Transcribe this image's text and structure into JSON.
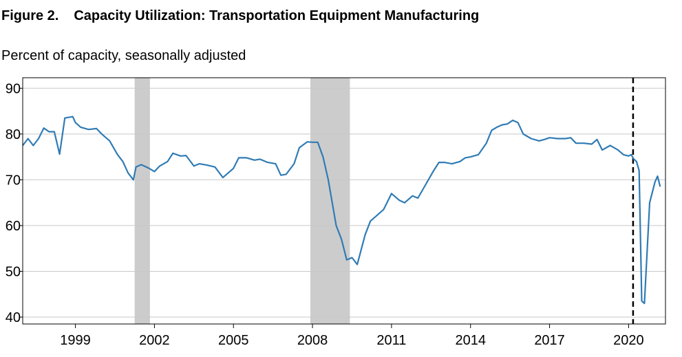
{
  "figure_label": "Figure 2.",
  "title": "Capacity Utilization: Transportation Equipment Manufacturing",
  "subtitle": "Percent of capacity, seasonally adjusted",
  "chart_data": {
    "type": "line",
    "title": "Capacity Utilization: Transportation Equipment Manufacturing",
    "ylabel": "Percent of capacity, seasonally adjusted",
    "xlabel": "",
    "xlim": [
      1997.0,
      2021.4
    ],
    "ylim": [
      38.5,
      92.3
    ],
    "grid": true,
    "x_ticks": [
      {
        "value": 1999,
        "label": "1999"
      },
      {
        "value": 2002,
        "label": "2002"
      },
      {
        "value": 2005,
        "label": "2005"
      },
      {
        "value": 2008,
        "label": "2008"
      },
      {
        "value": 2011,
        "label": "2011"
      },
      {
        "value": 2014,
        "label": "2014"
      },
      {
        "value": 2017,
        "label": "2017"
      },
      {
        "value": 2020,
        "label": "2020"
      }
    ],
    "y_ticks": [
      {
        "value": 40,
        "label": "40"
      },
      {
        "value": 50,
        "label": "50"
      },
      {
        "value": 60,
        "label": "60"
      },
      {
        "value": 70,
        "label": "70"
      },
      {
        "value": 80,
        "label": "80"
      },
      {
        "value": 90,
        "label": "90"
      }
    ],
    "recessions": [
      {
        "start": 2001.25,
        "end": 2001.83
      },
      {
        "start": 2007.92,
        "end": 2009.42
      }
    ],
    "vline": {
      "x": 2020.17,
      "style": "dashed",
      "color": "#000000"
    },
    "series": [
      {
        "color": "#2f7bb5",
        "x": [
          1997.0,
          1997.2,
          1997.4,
          1997.6,
          1997.8,
          1998.0,
          1998.2,
          1998.4,
          1998.6,
          1998.9,
          1999.0,
          1999.2,
          1999.5,
          1999.8,
          2000.0,
          2000.3,
          2000.6,
          2000.8,
          2001.0,
          2001.2,
          2001.3,
          2001.5,
          2001.8,
          2002.0,
          2002.2,
          2002.5,
          2002.7,
          2003.0,
          2003.2,
          2003.5,
          2003.7,
          2004.0,
          2004.3,
          2004.6,
          2004.8,
          2005.0,
          2005.2,
          2005.5,
          2005.8,
          2006.0,
          2006.3,
          2006.6,
          2006.8,
          2007.0,
          2007.3,
          2007.5,
          2007.8,
          2008.0,
          2008.2,
          2008.4,
          2008.6,
          2008.9,
          2009.1,
          2009.3,
          2009.5,
          2009.7,
          2010.0,
          2010.2,
          2010.5,
          2010.7,
          2011.0,
          2011.3,
          2011.5,
          2011.8,
          2012.0,
          2012.3,
          2012.6,
          2012.8,
          2013.0,
          2013.3,
          2013.6,
          2013.8,
          2014.0,
          2014.3,
          2014.6,
          2014.8,
          2015.0,
          2015.2,
          2015.4,
          2015.6,
          2015.8,
          2016.0,
          2016.3,
          2016.6,
          2016.8,
          2017.0,
          2017.3,
          2017.6,
          2017.8,
          2018.0,
          2018.3,
          2018.6,
          2018.8,
          2019.0,
          2019.3,
          2019.6,
          2019.8,
          2020.0,
          2020.1,
          2020.2,
          2020.3,
          2020.4,
          2020.5,
          2020.6,
          2020.8,
          2021.0,
          2021.1,
          2021.2
        ],
        "values": [
          77.5,
          79.0,
          77.5,
          79.0,
          81.3,
          80.5,
          80.5,
          75.6,
          83.5,
          83.8,
          82.5,
          81.5,
          81.0,
          81.2,
          80.0,
          78.5,
          75.5,
          74.0,
          71.5,
          70.0,
          72.8,
          73.3,
          72.5,
          71.8,
          73.0,
          74.0,
          75.8,
          75.2,
          75.3,
          73.0,
          73.5,
          73.2,
          72.8,
          70.5,
          71.5,
          72.5,
          74.8,
          74.8,
          74.3,
          74.5,
          73.8,
          73.5,
          71.0,
          71.2,
          73.5,
          77.0,
          78.3,
          78.2,
          78.2,
          75.0,
          70.0,
          60.0,
          57.0,
          52.5,
          53.0,
          51.5,
          58.0,
          61.0,
          62.5,
          63.5,
          67.0,
          65.5,
          65.0,
          66.5,
          66.0,
          69.0,
          72.0,
          73.8,
          73.8,
          73.5,
          74.0,
          74.8,
          75.0,
          75.5,
          78.0,
          80.8,
          81.5,
          82.0,
          82.2,
          83.0,
          82.5,
          80.0,
          79.0,
          78.5,
          78.8,
          79.2,
          79.0,
          79.0,
          79.2,
          78.0,
          78.0,
          77.8,
          78.8,
          76.5,
          77.5,
          76.5,
          75.5,
          75.2,
          75.5,
          74.5,
          74.0,
          72.0,
          43.5,
          43.0,
          65.0,
          69.5,
          70.8,
          68.5
        ]
      }
    ]
  }
}
